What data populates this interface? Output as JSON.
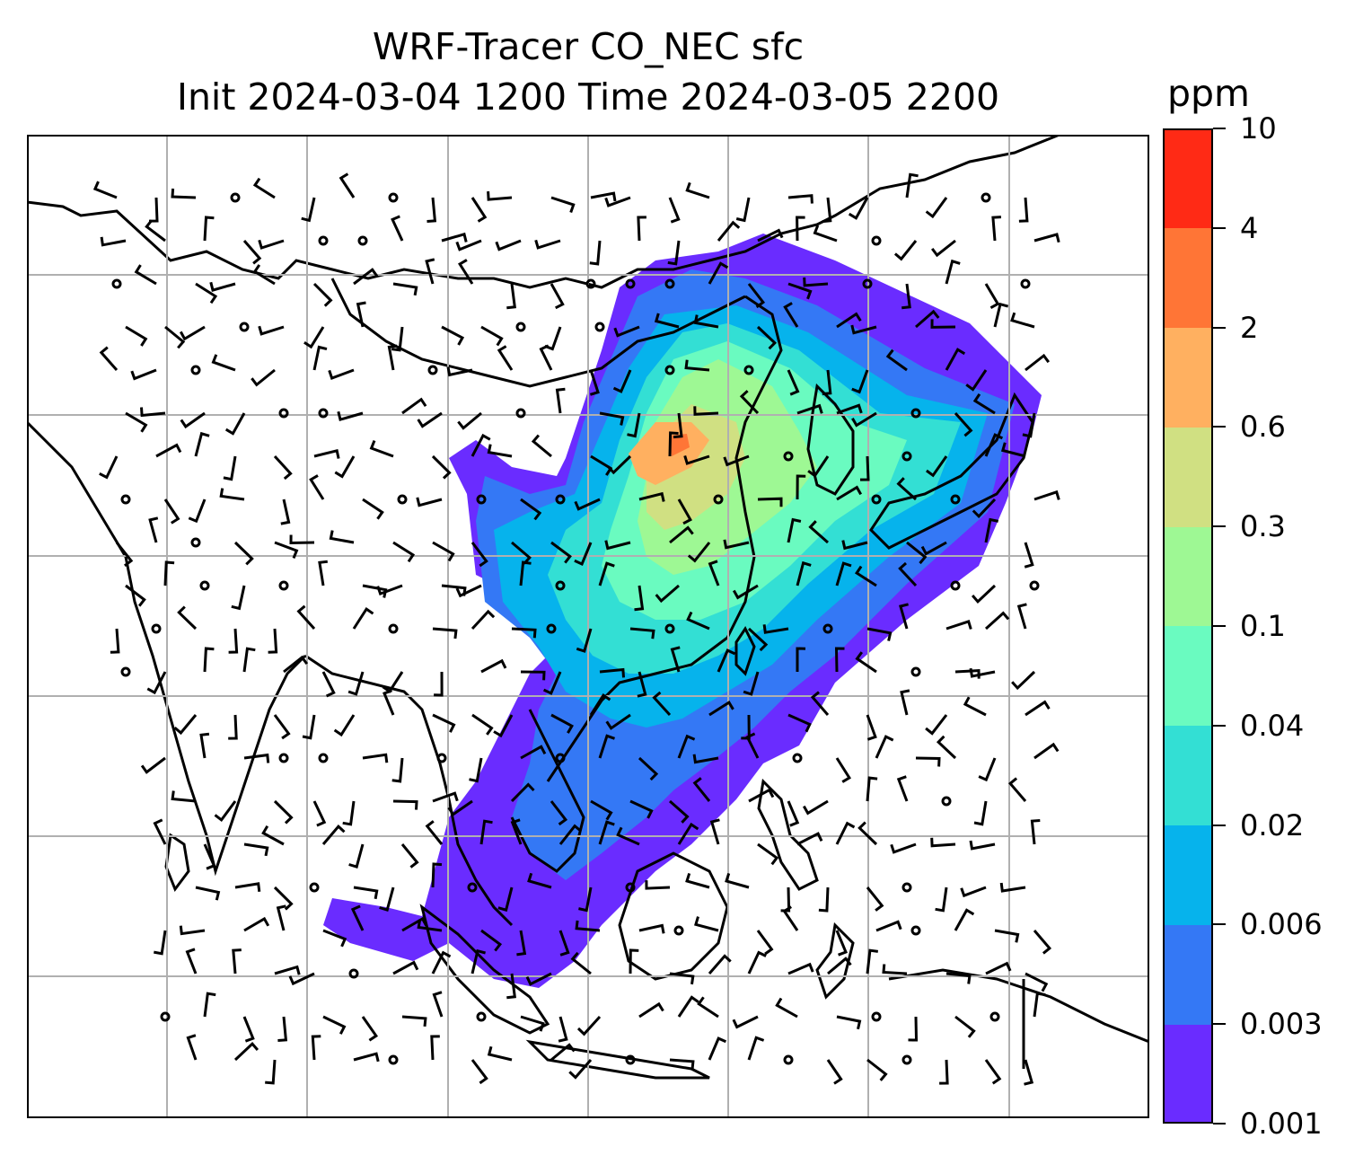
{
  "title": {
    "line1": "WRF-Tracer CO_NEC sfc",
    "line2": "Init 2024-03-04 1200 Time 2024-03-05 2200"
  },
  "colorbar": {
    "unit": "ppm",
    "levels": [
      "0.001",
      "0.003",
      "0.006",
      "0.02",
      "0.04",
      "0.1",
      "0.3",
      "0.6",
      "2",
      "4",
      "10"
    ],
    "colors": [
      "#6a2cff",
      "#3478f5",
      "#06b3ec",
      "#33dfd4",
      "#6afbc0",
      "#9ef894",
      "#d0e082",
      "#ffb060",
      "#ff7536",
      "#ff2a15"
    ]
  },
  "map": {
    "field": "CO_NEC",
    "level": "sfc",
    "gridlines": true,
    "overlay": "wind barbs",
    "line_color": "#000000",
    "grid_color": "#b0b0b0"
  }
}
